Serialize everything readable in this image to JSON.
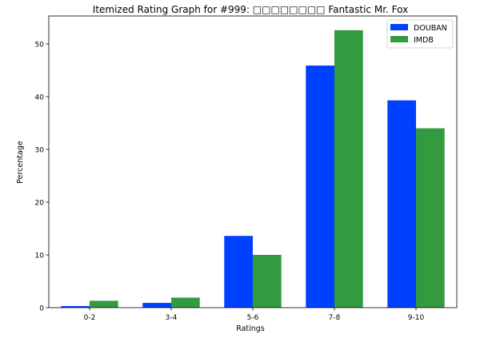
{
  "chart_data": {
    "type": "bar",
    "title": "Itemized Rating Graph for #999: □□□□□□□□ Fantastic Mr. Fox",
    "xlabel": "Ratings",
    "ylabel": "Percentage",
    "categories": [
      "0-2",
      "3-4",
      "5-6",
      "7-8",
      "9-10"
    ],
    "series": [
      {
        "name": "DOUBAN",
        "color": "#0040ff",
        "values": [
          0.3,
          0.9,
          13.6,
          45.9,
          39.3
        ]
      },
      {
        "name": "IMDB",
        "color": "#339a40",
        "values": [
          1.3,
          1.9,
          10.0,
          52.6,
          34.0
        ]
      }
    ],
    "yticks": [
      0,
      10,
      20,
      30,
      40,
      50
    ],
    "ylim": [
      0,
      55.3
    ],
    "grid": false,
    "legend_position": "top-right"
  }
}
